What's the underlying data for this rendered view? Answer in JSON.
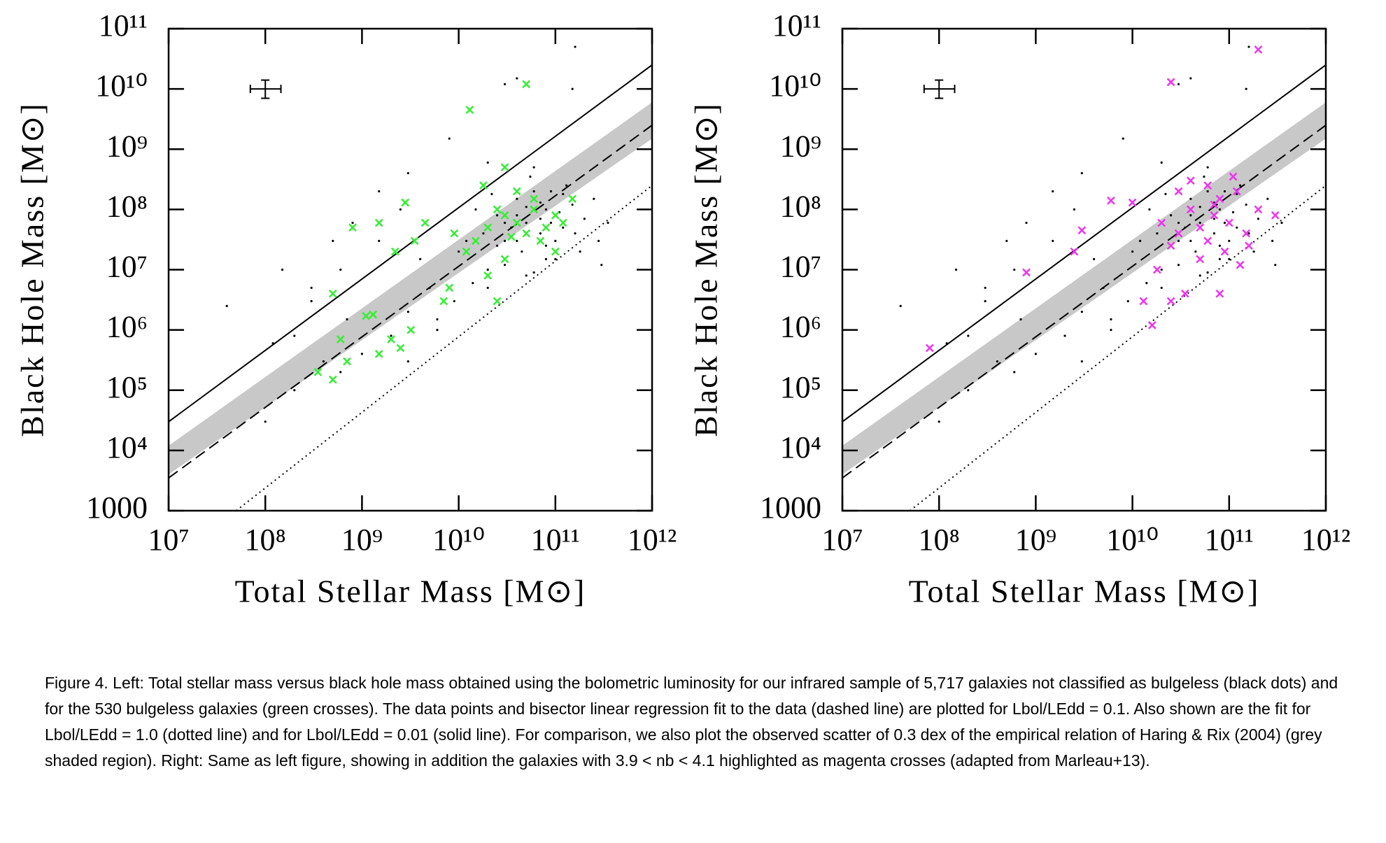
{
  "chart_data": [
    {
      "type": "scatter",
      "xlabel": "Total Stellar Mass [M⊙]",
      "ylabel": "Black Hole Mass [M⊙]",
      "xscale": "log",
      "yscale": "log",
      "xlim": [
        10000000,
        1000000000000
      ],
      "ylim": [
        1000,
        100000000000
      ],
      "xticks": [
        {
          "value": 10000000,
          "label": "10⁷"
        },
        {
          "value": 100000000,
          "label": "10⁸"
        },
        {
          "value": 1000000000,
          "label": "10⁹"
        },
        {
          "value": 10000000000,
          "label": "10¹⁰"
        },
        {
          "value": 100000000000,
          "label": "10¹¹"
        },
        {
          "value": 1000000000000,
          "label": "10¹²"
        }
      ],
      "yticks": [
        1000,
        {
          "value": 10000,
          "label": "10⁴"
        },
        {
          "value": 100000,
          "label": "10⁵"
        },
        {
          "value": 1000000,
          "label": "10⁶"
        },
        {
          "value": 10000000,
          "label": "10⁷"
        },
        {
          "value": 100000000,
          "label": "10⁸"
        },
        {
          "value": 1000000000,
          "label": "10⁹"
        },
        {
          "value": 10000000000,
          "label": "10¹⁰"
        },
        {
          "value": 100000000000,
          "label": "10¹¹"
        }
      ],
      "band": {
        "color": "#c8c8c8",
        "x": [
          10000000,
          1000000000000
        ],
        "lower": [
          4000,
          1500000000
        ],
        "upper": [
          12000,
          6000000000
        ]
      },
      "lines": [
        {
          "style": "solid",
          "x": [
            10000000,
            1000000000000
          ],
          "values": [
            30000,
            25000000000
          ]
        },
        {
          "style": "dashed",
          "x": [
            10000000,
            1000000000000
          ],
          "values": [
            3500,
            2500000000
          ]
        },
        {
          "style": "dotted",
          "x": [
            50000000,
            1000000000000
          ],
          "values": [
            1000,
            250000000
          ]
        }
      ],
      "error_bar": {
        "x": 100000000,
        "y": 10000000000,
        "xlow": 70000000,
        "xhigh": 145000000,
        "ylow": 7000000000,
        "yhigh": 14000000000
      },
      "series": [
        {
          "marker": "dot",
          "color": "#000000",
          "x": [
            50000000000.0,
            30000000000.0,
            80000000000.0,
            120000000000.0,
            60000000000.0,
            20000000000.0,
            40000000000.0,
            100000000000.0,
            70000000000.0,
            25000000000.0,
            150000000000.0,
            45000000000.0,
            90000000000.0,
            35000000000.0,
            200000000000.0,
            18000000000.0,
            60000000000.0,
            130000000000.0,
            55000000000.0,
            22000000000.0,
            80000000000.0,
            110000000000.0,
            30000000000.0,
            40000000000.0,
            70000000000.0,
            160000000000.0,
            280000000000.0,
            14000000000.0,
            9000000000.0,
            6000000000.0,
            10000000000.0,
            5000000000.0,
            3000000000.0,
            2000000000.0,
            1000000000.0,
            600000000.0,
            400000000.0,
            200000000.0,
            100000000.0,
            300000000.0,
            700000000.0,
            1500000000.0,
            800000000.0,
            2500000000.0,
            4000000000.0,
            600000000.0,
            300000000.0,
            200000000.0,
            120000000.0,
            40000000.0,
            150000000.0,
            500000000.0,
            1500000000.0,
            3000000000.0,
            8000000000.0,
            20000000000.0,
            160000000000.0,
            40000000000.0,
            30000000000.0,
            150000000000.0,
            300000000000.0,
            250000000000.0,
            100000000000.0,
            50000000000.0,
            12000000000.0,
            15000000000.0,
            60000000000.0,
            90000000000.0,
            180000000000.0,
            350000000000.0,
            25000000000.0,
            40000000000.0,
            70000000000.0,
            120000000000.0,
            50000000000.0,
            30000000000.0,
            80000000000.0,
            20000000000.0,
            3000000000.0,
            6000000000.0
          ],
          "values": [
            60000000.0,
            30000000.0,
            100000000.0,
            50000000.0,
            200000000.0,
            10000000.0,
            150000000.0,
            30000000.0,
            40000000.0,
            80000000.0,
            120000000.0,
            20000000.0,
            60000000.0,
            50000000.0,
            70000000.0,
            40000000.0,
            9000000.0,
            250000000.0,
            350000000.0,
            180000000.0,
            15000000.0,
            90000000.0,
            12000000.0,
            80000000.0,
            130000000.0,
            40000000.0,
            30000000.0,
            6000000.0,
            3000000.0,
            1500000.0,
            20000000.0,
            5000000.0,
            2000000.0,
            800000.0,
            400000.0,
            200000.0,
            300000.0,
            100000.0,
            30000.0,
            5000000.0,
            1500000.0,
            30000000.0,
            60000000.0,
            100000000.0,
            15000000.0,
            10000000.0,
            3000000.0,
            800000.0,
            600000.0,
            2500000.0,
            10000000.0,
            30000000.0,
            200000000.0,
            400000000.0,
            1500000000.0,
            600000000.0,
            50000000000.0,
            15000000000.0,
            12000000000.0,
            10000000000.0,
            12000000.0,
            150000000.0,
            15000000.0,
            8000000.0,
            30000000.0,
            100000000.0,
            500000000.0,
            200000000.0,
            20000000.0,
            60000000.0,
            25000000.0,
            30000000.0,
            70000000.0,
            180000000.0,
            110000000.0,
            60000000.0,
            25000000.0,
            5000000.0,
            300000.0,
            1000000.0
          ]
        },
        {
          "marker": "cross",
          "color": "#33ee33",
          "x": [
            13000000000.0,
            50000000000.0,
            30000000000.0,
            18000000000.0,
            2800000000.0,
            800000000.0,
            1500000000.0,
            2200000000.0,
            3500000000.0,
            4500000000.0,
            500000000.0,
            600000000.0,
            700000000.0,
            1100000000.0,
            1500000000.0,
            1300000000.0,
            2000000000.0,
            3200000000.0,
            350000000.0,
            500000000.0,
            7000000000.0,
            8000000000.0,
            12000000000.0,
            15000000000.0,
            20000000000.0,
            25000000000.0,
            30000000000.0,
            40000000000.0,
            50000000000.0,
            60000000000.0,
            70000000000.0,
            80000000000.0,
            100000000000.0,
            120000000000.0,
            20000000000.0,
            30000000000.0,
            40000000000.0,
            150000000000.0,
            9000000000.0,
            25000000000.0,
            60000000000.0,
            100000000000.0,
            35000000000.0,
            2500000000.0
          ],
          "values": [
            4500000000.0,
            12000000000.0,
            500000000.0,
            250000000.0,
            130000000.0,
            50000000.0,
            60000000.0,
            20000000.0,
            30000000.0,
            60000000.0,
            4000000.0,
            700000.0,
            300000.0,
            1700000.0,
            400000.0,
            1800000.0,
            700000.0,
            1000000.0,
            200000.0,
            150000.0,
            3000000.0,
            5000000.0,
            20000000.0,
            30000000.0,
            50000000.0,
            100000000.0,
            80000000.0,
            60000000.0,
            40000000.0,
            100000000.0,
            30000000.0,
            50000000.0,
            80000000.0,
            60000000.0,
            8000000.0,
            15000000.0,
            200000000.0,
            150000000.0,
            40000000.0,
            3000000.0,
            150000000.0,
            20000000.0,
            35000000.0,
            500000.0
          ]
        }
      ]
    },
    {
      "type": "scatter",
      "xlabel": "Total Stellar Mass [M⊙]",
      "ylabel": "Black Hole Mass [M⊙]",
      "xscale": "log",
      "yscale": "log",
      "xlim": [
        10000000,
        1000000000000
      ],
      "ylim": [
        1000,
        100000000000
      ],
      "xticks": [
        {
          "value": 10000000,
          "label": "10⁷"
        },
        {
          "value": 100000000,
          "label": "10⁸"
        },
        {
          "value": 1000000000,
          "label": "10⁹"
        },
        {
          "value": 10000000000,
          "label": "10¹⁰"
        },
        {
          "value": 100000000000,
          "label": "10¹¹"
        },
        {
          "value": 1000000000000,
          "label": "10¹²"
        }
      ],
      "yticks": [
        1000,
        {
          "value": 10000,
          "label": "10⁴"
        },
        {
          "value": 100000,
          "label": "10⁵"
        },
        {
          "value": 1000000,
          "label": "10⁶"
        },
        {
          "value": 10000000,
          "label": "10⁷"
        },
        {
          "value": 100000000,
          "label": "10⁸"
        },
        {
          "value": 1000000000,
          "label": "10⁹"
        },
        {
          "value": 10000000000,
          "label": "10¹⁰"
        },
        {
          "value": 100000000000,
          "label": "10¹¹"
        }
      ],
      "band": {
        "color": "#c8c8c8",
        "x": [
          10000000,
          1000000000000
        ],
        "lower": [
          4000,
          1500000000
        ],
        "upper": [
          12000,
          6000000000
        ]
      },
      "lines": [
        {
          "style": "solid",
          "x": [
            10000000,
            1000000000000
          ],
          "values": [
            30000,
            25000000000
          ]
        },
        {
          "style": "dashed",
          "x": [
            10000000,
            1000000000000
          ],
          "values": [
            3500,
            2500000000
          ]
        },
        {
          "style": "dotted",
          "x": [
            50000000,
            1000000000000
          ],
          "values": [
            1000,
            250000000
          ]
        }
      ],
      "error_bar": {
        "x": 100000000,
        "y": 10000000000,
        "xlow": 70000000,
        "xhigh": 145000000,
        "ylow": 7000000000,
        "yhigh": 14000000000
      },
      "series": [
        {
          "marker": "dot",
          "color": "#000000",
          "x": [
            50000000000.0,
            30000000000.0,
            80000000000.0,
            120000000000.0,
            60000000000.0,
            20000000000.0,
            40000000000.0,
            100000000000.0,
            70000000000.0,
            25000000000.0,
            150000000000.0,
            45000000000.0,
            90000000000.0,
            35000000000.0,
            200000000000.0,
            18000000000.0,
            60000000000.0,
            130000000000.0,
            55000000000.0,
            22000000000.0,
            80000000000.0,
            110000000000.0,
            30000000000.0,
            40000000000.0,
            70000000000.0,
            160000000000.0,
            280000000000.0,
            14000000000.0,
            9000000000.0,
            6000000000.0,
            10000000000.0,
            5000000000.0,
            3000000000.0,
            2000000000.0,
            1000000000.0,
            600000000.0,
            400000000.0,
            200000000.0,
            100000000.0,
            300000000.0,
            700000000.0,
            1500000000.0,
            800000000.0,
            2500000000.0,
            4000000000.0,
            600000000.0,
            300000000.0,
            200000000.0,
            120000000.0,
            40000000.0,
            150000000.0,
            500000000.0,
            1500000000.0,
            3000000000.0,
            8000000000.0,
            20000000000.0,
            160000000000.0,
            40000000000.0,
            30000000000.0,
            150000000000.0,
            300000000000.0,
            250000000000.0,
            100000000000.0,
            50000000000.0,
            12000000000.0,
            15000000000.0,
            60000000000.0,
            90000000000.0,
            180000000000.0,
            350000000000.0,
            25000000000.0,
            40000000000.0,
            70000000000.0,
            120000000000.0,
            50000000000.0,
            30000000000.0,
            80000000000.0,
            20000000000.0,
            3000000000.0,
            6000000000.0
          ],
          "values": [
            60000000.0,
            30000000.0,
            100000000.0,
            50000000.0,
            200000000.0,
            10000000.0,
            150000000.0,
            30000000.0,
            40000000.0,
            80000000.0,
            120000000.0,
            20000000.0,
            60000000.0,
            50000000.0,
            70000000.0,
            40000000.0,
            9000000.0,
            250000000.0,
            350000000.0,
            180000000.0,
            15000000.0,
            90000000.0,
            12000000.0,
            80000000.0,
            130000000.0,
            40000000.0,
            30000000.0,
            6000000.0,
            3000000.0,
            1500000.0,
            20000000.0,
            5000000.0,
            2000000.0,
            800000.0,
            400000.0,
            200000.0,
            300000.0,
            100000.0,
            30000.0,
            5000000.0,
            1500000.0,
            30000000.0,
            60000000.0,
            100000000.0,
            15000000.0,
            10000000.0,
            3000000.0,
            800000.0,
            600000.0,
            2500000.0,
            10000000.0,
            30000000.0,
            200000000.0,
            400000000.0,
            1500000000.0,
            600000000.0,
            50000000000.0,
            15000000000.0,
            12000000000.0,
            10000000000.0,
            12000000.0,
            150000000.0,
            15000000.0,
            8000000.0,
            30000000.0,
            100000000.0,
            500000000.0,
            200000000.0,
            20000000.0,
            60000000.0,
            25000000.0,
            30000000.0,
            70000000.0,
            180000000.0,
            110000000.0,
            60000000.0,
            25000000.0,
            5000000.0,
            300000.0,
            1000000.0
          ]
        },
        {
          "marker": "cross",
          "color": "#ee33ee",
          "x": [
            200000000000.0,
            25000000000.0,
            80000000.0,
            800000000.0,
            2500000000.0,
            3000000000.0,
            6000000000.0,
            10000000000.0,
            13000000000.0,
            16000000000.0,
            25000000000.0,
            30000000000.0,
            40000000000.0,
            50000000000.0,
            60000000000.0,
            70000000000.0,
            80000000000.0,
            100000000000.0,
            120000000000.0,
            150000000000.0,
            200000000000.0,
            300000000000.0,
            20000000000.0,
            35000000000.0,
            50000000000.0,
            90000000000.0,
            130000000000.0,
            40000000000.0,
            60000000000.0,
            110000000000.0,
            25000000000.0,
            18000000000.0,
            80000000000.0,
            160000000000.0,
            70000000000.0,
            30000000000.0
          ],
          "values": [
            45000000000.0,
            13000000000.0,
            500000.0,
            9000000.0,
            20000000.0,
            45000000.0,
            140000000.0,
            130000000.0,
            3000000.0,
            1200000.0,
            3000000.0,
            200000000.0,
            100000000.0,
            50000000.0,
            30000000.0,
            80000000.0,
            150000000.0,
            60000000.0,
            200000000.0,
            40000000.0,
            100000000.0,
            80000000.0,
            60000000.0,
            4000000.0,
            15000000.0,
            20000000.0,
            12000000.0,
            300000000.0,
            250000000.0,
            350000000.0,
            25000000.0,
            10000000.0,
            4000000.0,
            25000000.0,
            120000000.0,
            40000000.0
          ]
        }
      ]
    }
  ],
  "caption": "Figure 4. Left: Total stellar mass versus black hole mass obtained using the bolometric luminosity for our infrared sample of 5,717 galaxies not classified as bulgeless (black dots) and for the 530 bulgeless galaxies (green crosses). The data points and bisector linear regression fit to the data (dashed line) are plotted for Lbol/LEdd = 0.1. Also shown are the fit for Lbol/LEdd = 1.0 (dotted line) and for Lbol/LEdd = 0.01 (solid line). For comparison, we also plot the observed scatter of 0.3 dex of the empirical relation of Haring & Rix (2004) (grey shaded region). Right: Same as left figure, showing in addition the galaxies with 3.9 < nb < 4.1 highlighted as magenta crosses (adapted from Marleau+13)."
}
